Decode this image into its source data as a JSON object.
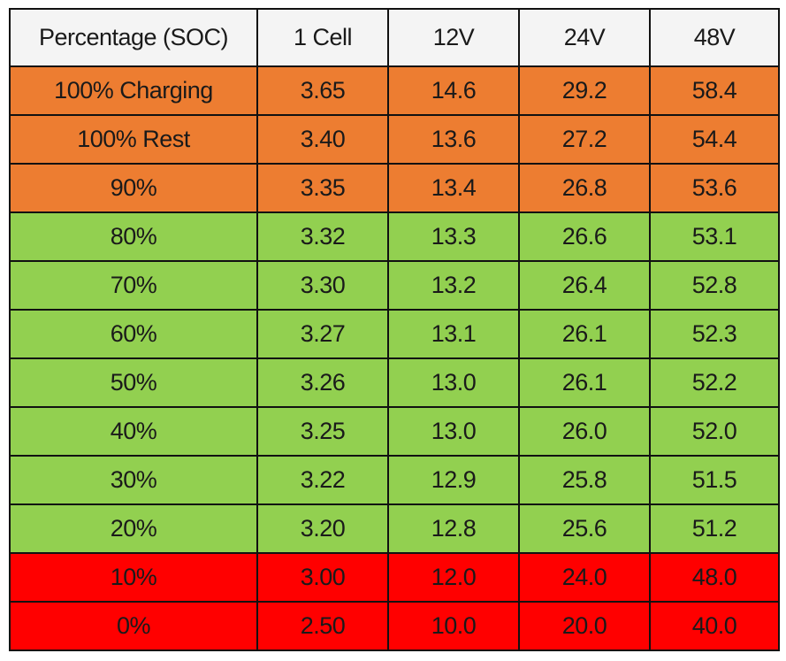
{
  "table": {
    "header": [
      "Percentage (SOC)",
      "1 Cell",
      "12V",
      "24V",
      "48V"
    ],
    "rows": [
      [
        "100% Charging",
        "3.65",
        "14.6",
        "29.2",
        "58.4"
      ],
      [
        "100% Rest",
        "3.40",
        "13.6",
        "27.2",
        "54.4"
      ],
      [
        "90%",
        "3.35",
        "13.4",
        "26.8",
        "53.6"
      ],
      [
        "80%",
        "3.32",
        "13.3",
        "26.6",
        "53.1"
      ],
      [
        "70%",
        "3.30",
        "13.2",
        "26.4",
        "52.8"
      ],
      [
        "60%",
        "3.27",
        "13.1",
        "26.1",
        "52.3"
      ],
      [
        "50%",
        "3.26",
        "13.0",
        "26.1",
        "52.2"
      ],
      [
        "40%",
        "3.25",
        "13.0",
        "26.0",
        "52.0"
      ],
      [
        "30%",
        "3.22",
        "12.9",
        "25.8",
        "51.5"
      ],
      [
        "20%",
        "3.20",
        "12.8",
        "25.6",
        "51.2"
      ],
      [
        "10%",
        "3.00",
        "12.0",
        "24.0",
        "48.0"
      ],
      [
        "0%",
        "2.50",
        "10.0",
        "20.0",
        "40.0"
      ]
    ],
    "row_colors": [
      "#ed7d31",
      "#ed7d31",
      "#ed7d31",
      "#92d050",
      "#92d050",
      "#92d050",
      "#92d050",
      "#92d050",
      "#92d050",
      "#92d050",
      "#ff0000",
      "#ff0000"
    ]
  }
}
